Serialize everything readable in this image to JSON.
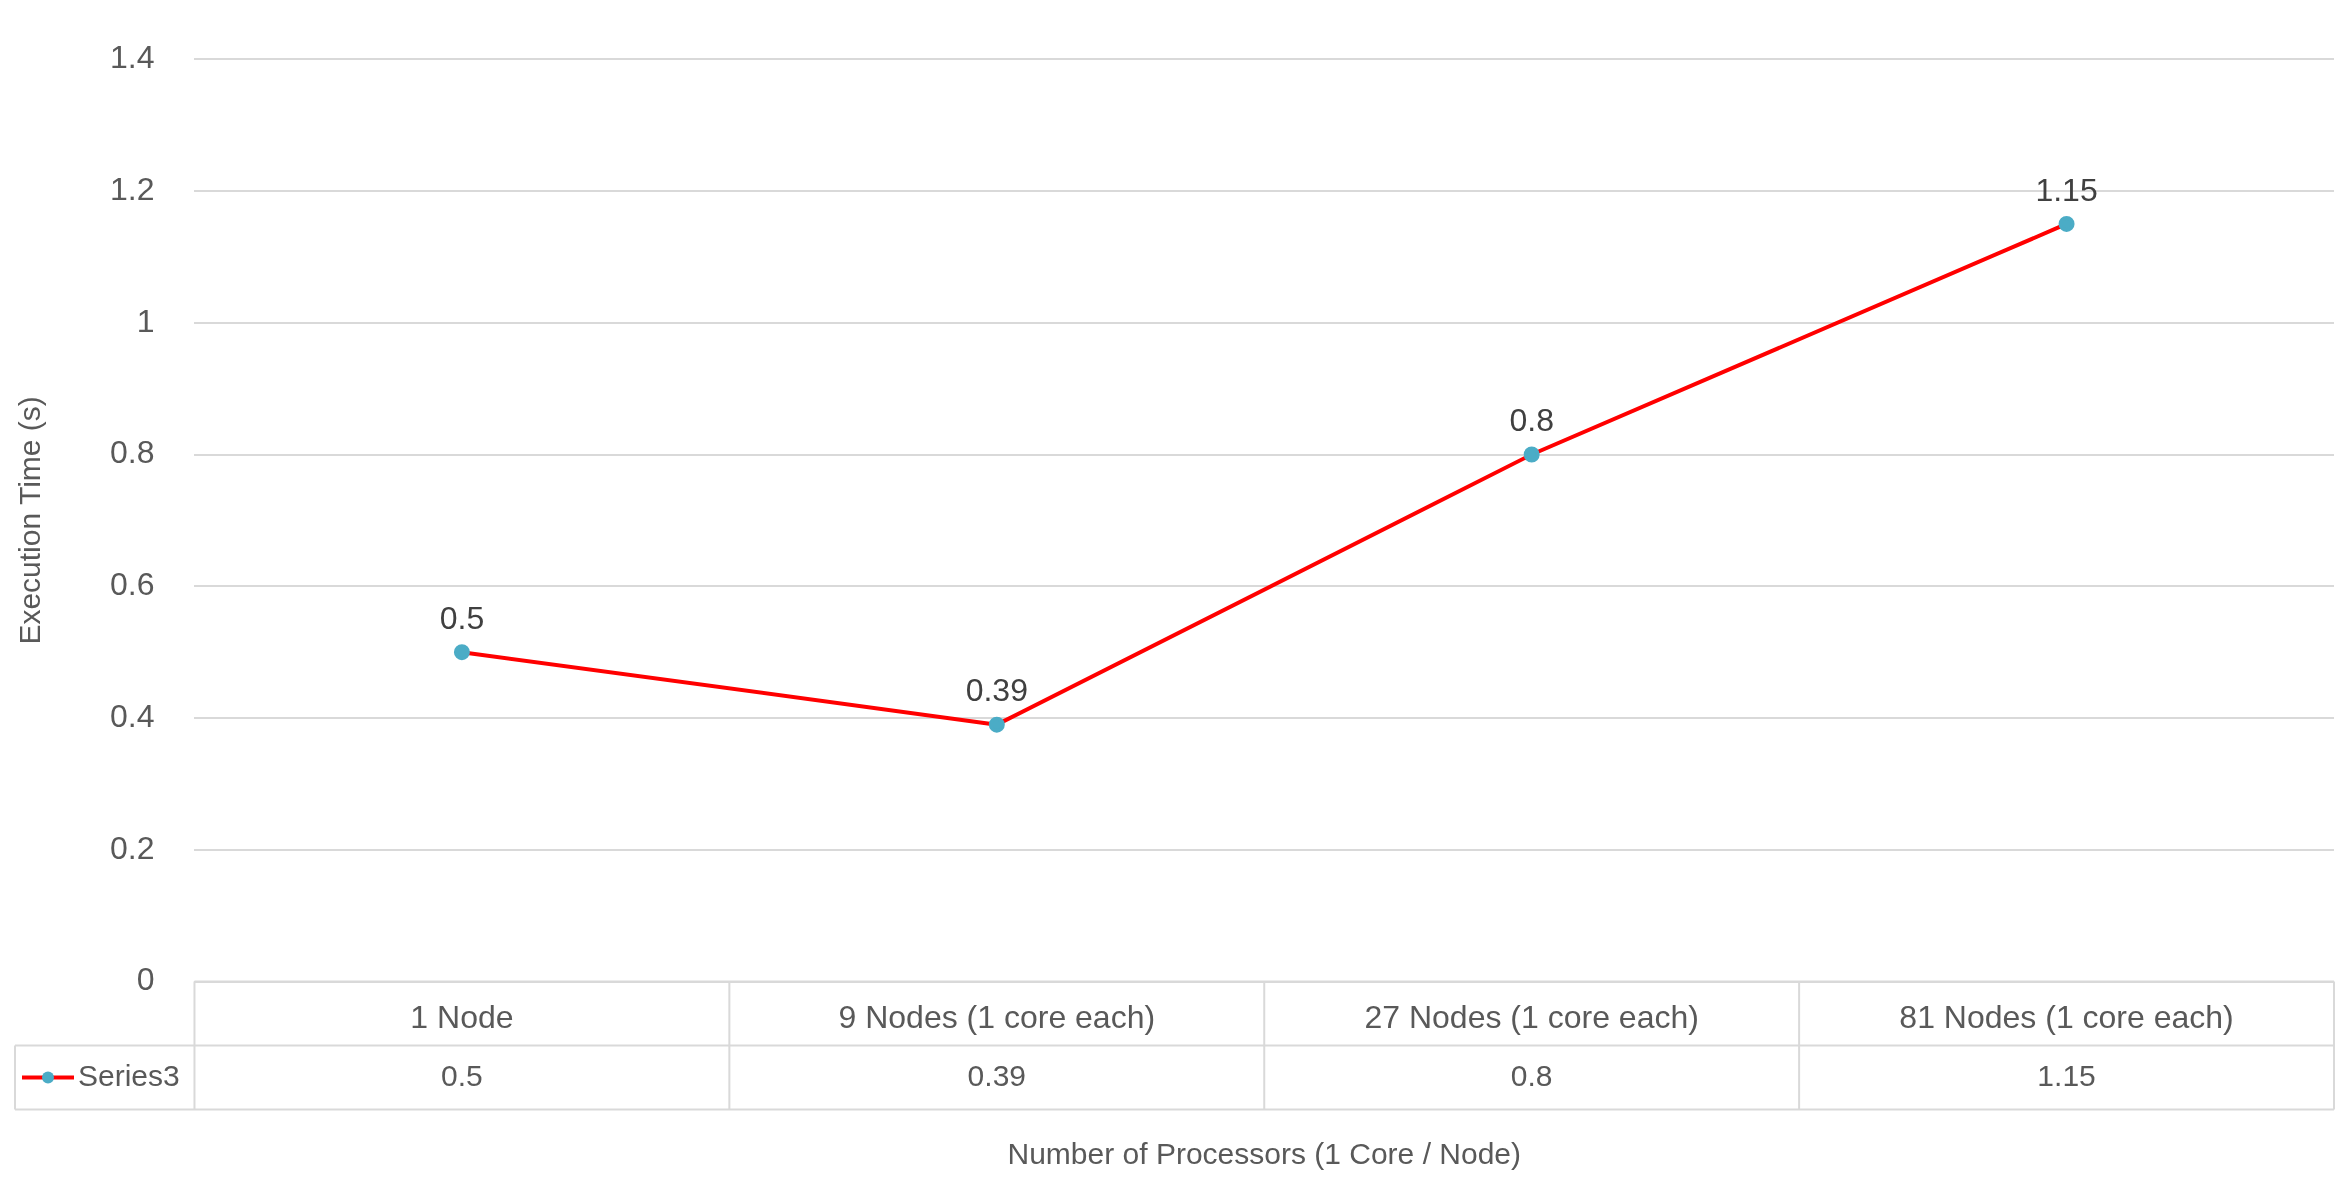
{
  "chart_data": {
    "type": "line",
    "xlabel": "Number of Processors (1 Core / Node)",
    "ylabel": "Execution Time (s)",
    "categories": [
      "1 Node",
      "9 Nodes (1 core each)",
      "27 Nodes (1 core each)",
      "81 Nodes (1 core each)"
    ],
    "series": [
      {
        "name": "Series3",
        "color": "#ff0000",
        "colors": [
          "#4bacc6",
          "#4bacc6",
          "#4bacc6",
          "#4bacc6"
        ],
        "values": [
          0.5,
          0.39,
          0.8,
          1.15
        ]
      }
    ],
    "annotations": [
      {
        "text": "0.5",
        "x": "1 Node",
        "y": 0.5
      },
      {
        "text": "0.39",
        "x": "9 Nodes (1 core each)",
        "y": 0.39
      },
      {
        "text": "0.8",
        "x": "27 Nodes (1 core each)",
        "y": 0.8
      },
      {
        "text": "1.15",
        "x": "81 Nodes (1 core each)",
        "y": 1.15
      }
    ],
    "ylim": [
      0,
      1.4
    ],
    "yticks": [
      0,
      0.2,
      0.4,
      0.6,
      0.8,
      1,
      1.2,
      1.4
    ],
    "grid": "y",
    "legend": "bottom",
    "marker": "circle",
    "line_style": "solid",
    "data_labels": true
  }
}
